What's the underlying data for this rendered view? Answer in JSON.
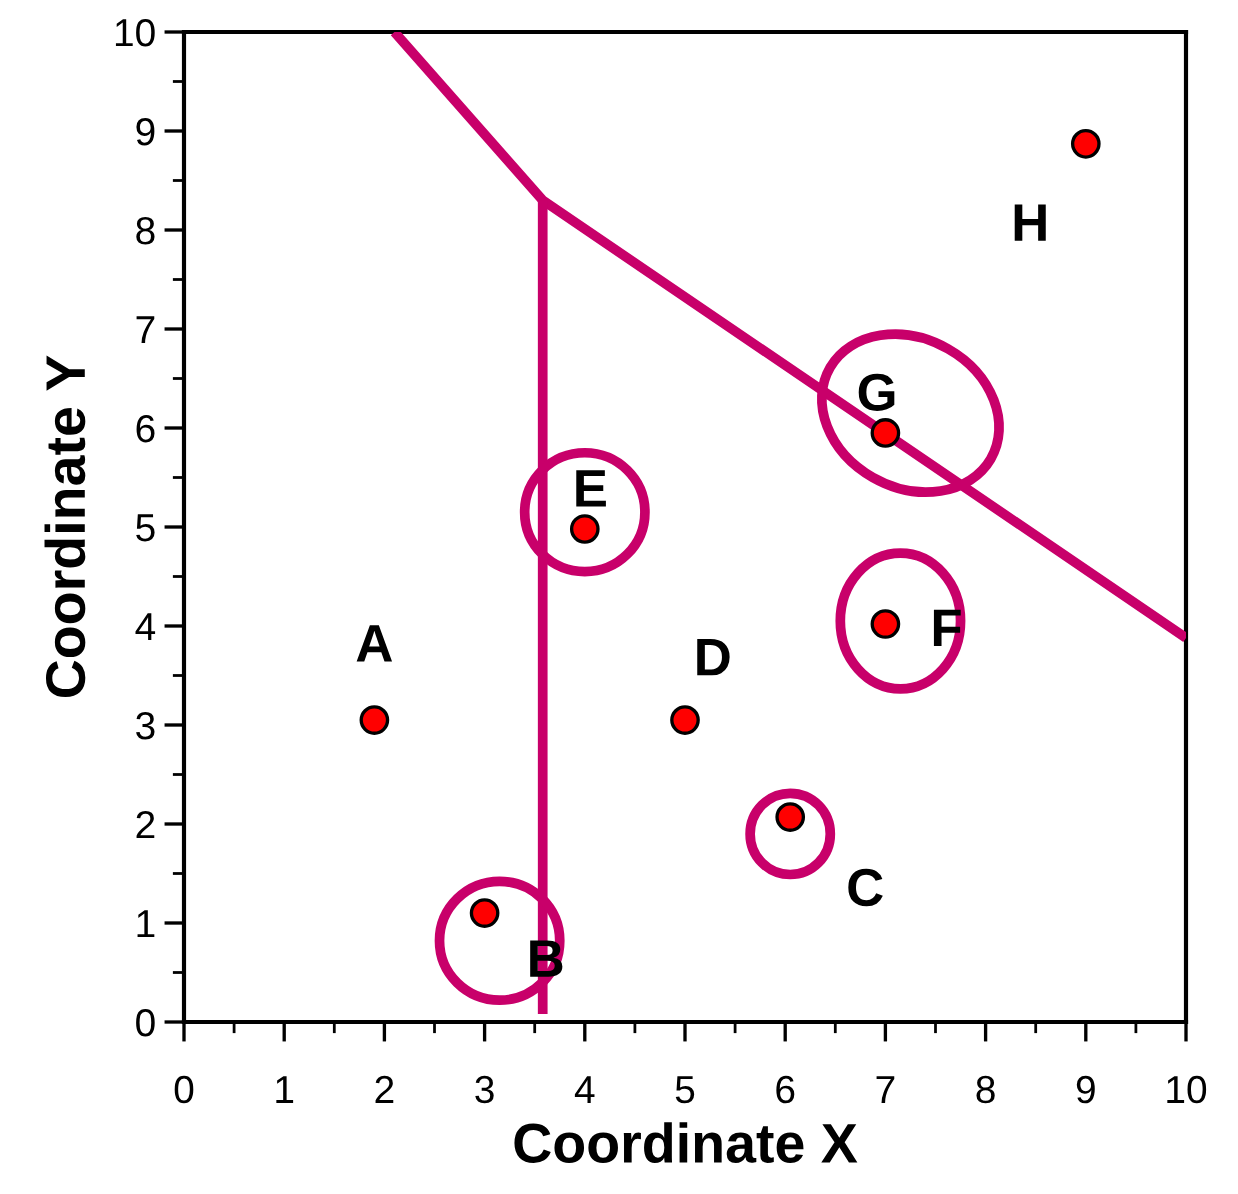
{
  "chart_data": {
    "type": "scatter",
    "xlabel": "Coordinate X",
    "ylabel": "Coordinate Y",
    "xlim": [
      0,
      10
    ],
    "ylim": [
      0,
      10
    ],
    "xticks": [
      0,
      1,
      2,
      3,
      4,
      5,
      6,
      7,
      8,
      9,
      10
    ],
    "yticks": [
      0,
      1,
      2,
      3,
      4,
      5,
      6,
      7,
      8,
      9,
      10
    ],
    "grid": false,
    "legend": false,
    "series": [
      {
        "color": "#ff0000",
        "marker": "circle",
        "x": [
          1.9,
          3.0,
          6.05,
          5.0,
          4.0,
          7.0,
          7.0,
          9.0
        ],
        "values": [
          3.05,
          1.1,
          2.07,
          3.05,
          4.98,
          4.02,
          5.95,
          8.87
        ]
      },
      {
        "type": "line",
        "color": "#c8006a",
        "marker": "none",
        "line_style": "solid",
        "x": [
          2.1,
          3.58,
          10
        ],
        "values": [
          10,
          8.3,
          3.88
        ]
      },
      {
        "type": "line",
        "color": "#c8006a",
        "marker": "none",
        "line_style": "solid",
        "x": [
          3.58,
          3.58
        ],
        "values": [
          8.3,
          0.08
        ]
      }
    ],
    "annotations": [
      {
        "text": "A",
        "x": 1.9,
        "y": 3.05
      },
      {
        "text": "B",
        "x": 3.0,
        "y": 1.1
      },
      {
        "text": "C",
        "x": 6.05,
        "y": 2.07
      },
      {
        "text": "D",
        "x": 5.0,
        "y": 3.05
      },
      {
        "text": "E",
        "x": 4.0,
        "y": 4.98
      },
      {
        "text": "F",
        "x": 7.0,
        "y": 4.02
      },
      {
        "text": "G",
        "x": 7.0,
        "y": 5.95
      },
      {
        "text": "H",
        "x": 9.0,
        "y": 8.87
      }
    ]
  }
}
